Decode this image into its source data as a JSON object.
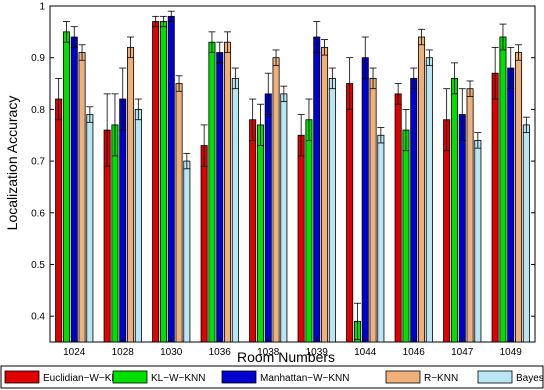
{
  "chart_data": {
    "type": "bar",
    "title": "",
    "xlabel": "Room Numbers",
    "ylabel": "Localization Accuracy",
    "ylim": [
      0.35,
      1.0
    ],
    "yticks": [
      "0.4",
      "0.5",
      "0.6",
      "0.7",
      "0.8",
      "0.9",
      "1"
    ],
    "grid": false,
    "legend_position": "bottom",
    "error_bars": true,
    "categories": [
      "1024",
      "1028",
      "1030",
      "1036",
      "1038",
      "1039",
      "1044",
      "1046",
      "1047",
      "1049"
    ],
    "series": [
      {
        "name": "Euclidian−W−KNN",
        "color": "#e00000",
        "values": [
          0.82,
          0.76,
          0.97,
          0.73,
          0.78,
          0.75,
          0.85,
          0.83,
          0.78,
          0.87
        ],
        "errors": [
          0.04,
          0.07,
          0.01,
          0.04,
          0.04,
          0.04,
          0.05,
          0.02,
          0.06,
          0.05
        ]
      },
      {
        "name": "KL−W−KNN",
        "color": "#00e000",
        "values": [
          0.95,
          0.77,
          0.97,
          0.93,
          0.77,
          0.78,
          0.39,
          0.76,
          0.86,
          0.94
        ],
        "errors": [
          0.02,
          0.06,
          0.01,
          0.02,
          0.04,
          0.04,
          0.035,
          0.04,
          0.03,
          0.025
        ]
      },
      {
        "name": "Manhattan−W−KNN",
        "color": "#0000d0",
        "values": [
          0.94,
          0.82,
          0.98,
          0.91,
          0.83,
          0.94,
          0.9,
          0.86,
          0.79,
          0.88
        ],
        "errors": [
          0.02,
          0.06,
          0.01,
          0.02,
          0.04,
          0.03,
          0.04,
          0.02,
          0.05,
          0.04
        ]
      },
      {
        "name": "R−KNN",
        "color": "#f0b07a",
        "values": [
          0.91,
          0.92,
          0.85,
          0.93,
          0.9,
          0.92,
          0.86,
          0.94,
          0.84,
          0.91
        ],
        "errors": [
          0.015,
          0.02,
          0.015,
          0.02,
          0.015,
          0.015,
          0.02,
          0.015,
          0.015,
          0.015
        ]
      },
      {
        "name": "Bayesian",
        "color": "#b8e6f5",
        "values": [
          0.79,
          0.8,
          0.7,
          0.86,
          0.83,
          0.86,
          0.75,
          0.9,
          0.74,
          0.77
        ],
        "errors": [
          0.015,
          0.02,
          0.015,
          0.02,
          0.015,
          0.02,
          0.015,
          0.015,
          0.015,
          0.015
        ]
      }
    ]
  }
}
